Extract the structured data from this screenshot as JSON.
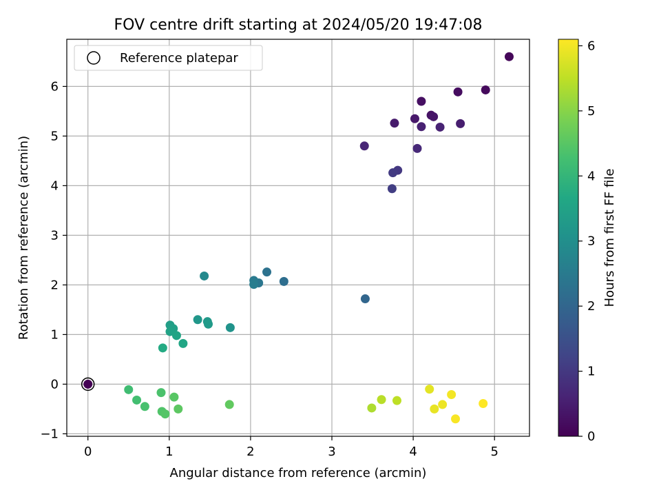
{
  "chart_data": {
    "type": "scatter",
    "title": "FOV centre drift starting at 2024/05/20 19:47:08",
    "xlabel": "Angular distance from reference (arcmin)",
    "ylabel": "Rotation from reference (arcmin)",
    "xlim": [
      -0.26,
      5.43
    ],
    "ylim": [
      -1.05,
      6.95
    ],
    "x_ticks": [
      "0",
      "1",
      "2",
      "3",
      "4",
      "5"
    ],
    "y_ticks": [
      "−1",
      "0",
      "1",
      "2",
      "3",
      "4",
      "5",
      "6"
    ],
    "grid": true,
    "legend": {
      "placement": "top-left",
      "label": "Reference platepar"
    },
    "reference_point": {
      "x": 0,
      "y": 0
    },
    "colorbar": {
      "label": "Hours from first FF file",
      "range": [
        0,
        6.1
      ],
      "ticks": [
        "0",
        "1",
        "2",
        "3",
        "4",
        "5",
        "6"
      ],
      "colormap": "viridis"
    },
    "points": [
      {
        "x": 0.0,
        "y": 0.0,
        "h": 0.0
      },
      {
        "x": 5.18,
        "y": 6.6,
        "h": 0.1
      },
      {
        "x": 4.89,
        "y": 5.93,
        "h": 0.15
      },
      {
        "x": 4.55,
        "y": 5.89,
        "h": 0.2
      },
      {
        "x": 4.1,
        "y": 5.7,
        "h": 0.25
      },
      {
        "x": 4.22,
        "y": 5.42,
        "h": 0.3
      },
      {
        "x": 4.25,
        "y": 5.39,
        "h": 0.35
      },
      {
        "x": 4.02,
        "y": 5.35,
        "h": 0.4
      },
      {
        "x": 3.77,
        "y": 5.26,
        "h": 0.45
      },
      {
        "x": 4.58,
        "y": 5.25,
        "h": 0.5
      },
      {
        "x": 4.1,
        "y": 5.19,
        "h": 0.55
      },
      {
        "x": 4.33,
        "y": 5.18,
        "h": 0.6
      },
      {
        "x": 3.4,
        "y": 4.8,
        "h": 0.65
      },
      {
        "x": 4.05,
        "y": 4.75,
        "h": 0.7
      },
      {
        "x": 3.81,
        "y": 4.31,
        "h": 1.0
      },
      {
        "x": 3.75,
        "y": 4.26,
        "h": 1.05
      },
      {
        "x": 3.74,
        "y": 3.94,
        "h": 1.1
      },
      {
        "x": 3.41,
        "y": 1.72,
        "h": 2.0
      },
      {
        "x": 2.41,
        "y": 2.07,
        "h": 2.2
      },
      {
        "x": 2.2,
        "y": 2.26,
        "h": 2.3
      },
      {
        "x": 2.1,
        "y": 2.04,
        "h": 2.4
      },
      {
        "x": 2.04,
        "y": 2.09,
        "h": 2.5
      },
      {
        "x": 2.04,
        "y": 2.01,
        "h": 2.55
      },
      {
        "x": 1.43,
        "y": 2.18,
        "h": 2.85
      },
      {
        "x": 1.75,
        "y": 1.14,
        "h": 3.1
      },
      {
        "x": 1.35,
        "y": 1.3,
        "h": 3.2
      },
      {
        "x": 1.47,
        "y": 1.26,
        "h": 3.25
      },
      {
        "x": 1.48,
        "y": 1.21,
        "h": 3.3
      },
      {
        "x": 1.01,
        "y": 1.19,
        "h": 3.4
      },
      {
        "x": 1.05,
        "y": 1.12,
        "h": 3.45
      },
      {
        "x": 1.01,
        "y": 1.06,
        "h": 3.5
      },
      {
        "x": 1.09,
        "y": 0.98,
        "h": 3.55
      },
      {
        "x": 1.17,
        "y": 0.82,
        "h": 3.6
      },
      {
        "x": 0.92,
        "y": 0.73,
        "h": 3.7
      },
      {
        "x": 0.5,
        "y": -0.11,
        "h": 4.2
      },
      {
        "x": 0.6,
        "y": -0.32,
        "h": 4.25
      },
      {
        "x": 0.7,
        "y": -0.45,
        "h": 4.3
      },
      {
        "x": 0.9,
        "y": -0.17,
        "h": 4.35
      },
      {
        "x": 0.91,
        "y": -0.55,
        "h": 4.4
      },
      {
        "x": 0.95,
        "y": -0.6,
        "h": 4.45
      },
      {
        "x": 1.06,
        "y": -0.26,
        "h": 4.5
      },
      {
        "x": 1.11,
        "y": -0.5,
        "h": 4.55
      },
      {
        "x": 1.74,
        "y": -0.41,
        "h": 4.6
      },
      {
        "x": 3.49,
        "y": -0.48,
        "h": 5.35
      },
      {
        "x": 3.61,
        "y": -0.31,
        "h": 5.45
      },
      {
        "x": 3.8,
        "y": -0.33,
        "h": 5.5
      },
      {
        "x": 4.2,
        "y": -0.1,
        "h": 5.85
      },
      {
        "x": 4.26,
        "y": -0.5,
        "h": 5.9
      },
      {
        "x": 4.36,
        "y": -0.41,
        "h": 5.95
      },
      {
        "x": 4.47,
        "y": -0.21,
        "h": 6.0
      },
      {
        "x": 4.52,
        "y": -0.7,
        "h": 6.05
      },
      {
        "x": 4.86,
        "y": -0.39,
        "h": 6.1
      }
    ]
  }
}
